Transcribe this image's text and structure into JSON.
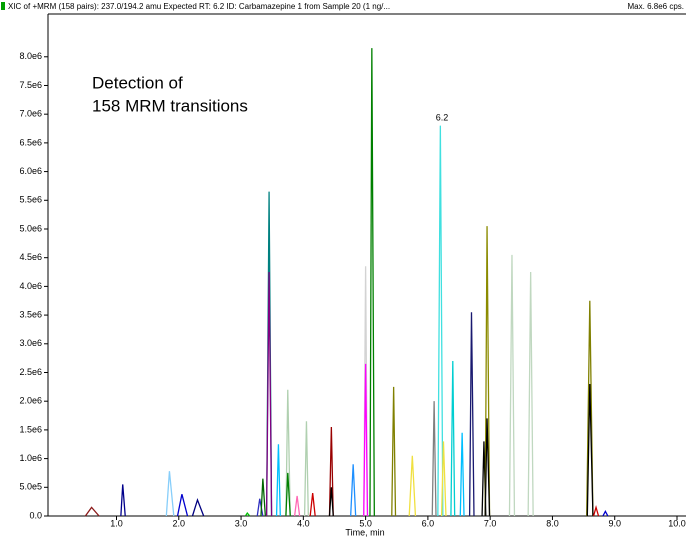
{
  "chart_data": {
    "type": "line",
    "title": "XIC of +MRM (158 pairs): 237.0/194.2 amu Expected RT: 6.2 ID: Carbamazepine 1 from Sample 20 (1 ng/...",
    "max_label": "Max. 6.8e6 cps.",
    "annotations": [
      "Detection of",
      "158 MRM transitions",
      "6.2"
    ],
    "x_label": "Time, min",
    "xlim": [
      -0.1,
      10.0
    ],
    "xticks": [
      {
        "value": 1,
        "label": "1.0"
      },
      {
        "value": 2,
        "label": "2.0"
      },
      {
        "value": 3,
        "label": "3.0"
      },
      {
        "value": 4,
        "label": "4.0"
      },
      {
        "value": 5,
        "label": "5.0"
      },
      {
        "value": 6,
        "label": "6.0"
      },
      {
        "value": 7,
        "label": "7.0"
      },
      {
        "value": 8,
        "label": "8.0"
      },
      {
        "value": 9,
        "label": "9.0"
      },
      {
        "value": 10,
        "label": "10.0"
      }
    ],
    "ylim": [
      0,
      8240000
    ],
    "yticks": [
      {
        "value": 0,
        "label": "0.0"
      },
      {
        "value": 500000,
        "label": "5.0e5"
      },
      {
        "value": 1000000,
        "label": "1.0e6"
      },
      {
        "value": 1500000,
        "label": "1.5e6"
      },
      {
        "value": 2000000,
        "label": "2.0e6"
      },
      {
        "value": 2500000,
        "label": "2.5e6"
      },
      {
        "value": 3000000,
        "label": "3.0e6"
      },
      {
        "value": 3500000,
        "label": "3.5e6"
      },
      {
        "value": 4000000,
        "label": "4.0e6"
      },
      {
        "value": 4500000,
        "label": "4.5e6"
      },
      {
        "value": 5000000,
        "label": "5.0e6"
      },
      {
        "value": 5500000,
        "label": "5.5e6"
      },
      {
        "value": 6000000,
        "label": "6.0e6"
      },
      {
        "value": 6500000,
        "label": "6.5e6"
      },
      {
        "value": 7000000,
        "label": "7.0e6"
      },
      {
        "value": 7500000,
        "label": "7.5e6"
      },
      {
        "value": 8000000,
        "label": "8.0e6"
      }
    ],
    "series": [
      {
        "color": "#8b1a1a",
        "x": [
          0.5,
          0.6,
          0.72
        ],
        "values": [
          0,
          150000,
          0
        ]
      },
      {
        "color": "#00008b",
        "x": [
          1.07,
          1.1,
          1.14
        ],
        "values": [
          0,
          550000,
          0
        ]
      },
      {
        "color": "#87cefa",
        "x": [
          1.8,
          1.85,
          1.92
        ],
        "values": [
          0,
          780000,
          0
        ]
      },
      {
        "color": "#0000cd",
        "x": [
          1.98,
          2.05,
          2.14
        ],
        "values": [
          0,
          380000,
          0
        ]
      },
      {
        "color": "#000080",
        "x": [
          2.22,
          2.3,
          2.4
        ],
        "values": [
          0,
          280000,
          0
        ]
      },
      {
        "color": "#00c000",
        "x": [
          3.07,
          3.1,
          3.14
        ],
        "values": [
          0,
          50000,
          0
        ]
      },
      {
        "color": "#3030c0",
        "x": [
          3.26,
          3.3,
          3.35
        ],
        "values": [
          0,
          300000,
          0
        ]
      },
      {
        "color": "#006400",
        "x": [
          3.32,
          3.35,
          3.39
        ],
        "values": [
          0,
          650000,
          0
        ]
      },
      {
        "color": "#008080",
        "x": [
          3.41,
          3.45,
          3.49
        ],
        "values": [
          0,
          5650000,
          0
        ]
      },
      {
        "color": "#800080",
        "x": [
          3.41,
          3.45,
          3.49
        ],
        "values": [
          0,
          4250000,
          0
        ]
      },
      {
        "color": "#00bfff",
        "x": [
          3.57,
          3.6,
          3.63
        ],
        "values": [
          0,
          1250000,
          0
        ]
      },
      {
        "color": "#b0d0b0",
        "x": [
          3.72,
          3.75,
          3.79
        ],
        "values": [
          0,
          2200000,
          0
        ]
      },
      {
        "color": "#008000",
        "x": [
          3.72,
          3.75,
          3.79
        ],
        "values": [
          0,
          750000,
          0
        ]
      },
      {
        "color": "#ff69b4",
        "x": [
          3.86,
          3.9,
          3.94
        ],
        "values": [
          0,
          350000,
          0
        ]
      },
      {
        "color": "#b0d0b0",
        "x": [
          4.02,
          4.05,
          4.08
        ],
        "values": [
          0,
          1650000,
          0
        ]
      },
      {
        "color": "#cc0000",
        "x": [
          4.11,
          4.15,
          4.19
        ],
        "values": [
          0,
          400000,
          0
        ]
      },
      {
        "color": "#990000",
        "x": [
          4.42,
          4.45,
          4.48
        ],
        "values": [
          0,
          1550000,
          0
        ]
      },
      {
        "color": "#000000",
        "x": [
          4.42,
          4.45,
          4.48
        ],
        "values": [
          0,
          500000,
          0
        ]
      },
      {
        "color": "#1e90ff",
        "x": [
          4.76,
          4.8,
          4.84
        ],
        "values": [
          0,
          900000,
          0
        ]
      },
      {
        "color": "#d3d3d3",
        "x": [
          4.97,
          5.0,
          5.03
        ],
        "values": [
          0,
          4350000,
          0
        ]
      },
      {
        "color": "#ff00ff",
        "x": [
          4.97,
          5.0,
          5.03
        ],
        "values": [
          0,
          2650000,
          0
        ]
      },
      {
        "color": "#008000",
        "x": [
          5.07,
          5.1,
          5.14
        ],
        "values": [
          0,
          8150000,
          0
        ]
      },
      {
        "color": "#808000",
        "x": [
          5.42,
          5.45,
          5.48
        ],
        "values": [
          0,
          2250000,
          0
        ]
      },
      {
        "color": "#f0e040",
        "x": [
          5.7,
          5.75,
          5.8
        ],
        "values": [
          0,
          1050000,
          0
        ]
      },
      {
        "color": "#808080",
        "x": [
          6.07,
          6.1,
          6.13
        ],
        "values": [
          0,
          2000000,
          0
        ]
      },
      {
        "color": "#40e0e0",
        "x": [
          6.16,
          6.2,
          6.24
        ],
        "values": [
          0,
          6800000,
          0
        ]
      },
      {
        "color": "#f0e040",
        "x": [
          6.22,
          6.25,
          6.29
        ],
        "values": [
          0,
          1300000,
          0
        ]
      },
      {
        "color": "#00ced1",
        "x": [
          6.37,
          6.4,
          6.43
        ],
        "values": [
          0,
          2700000,
          0
        ]
      },
      {
        "color": "#00bfff",
        "x": [
          6.52,
          6.55,
          6.58
        ],
        "values": [
          0,
          1450000,
          0
        ]
      },
      {
        "color": "#191970",
        "x": [
          6.67,
          6.7,
          6.74
        ],
        "values": [
          0,
          3550000,
          0
        ]
      },
      {
        "color": "#000000",
        "x": [
          6.87,
          6.9,
          6.93
        ],
        "values": [
          0,
          1300000,
          0
        ]
      },
      {
        "color": "#8b8b00",
        "x": [
          6.92,
          6.95,
          6.99
        ],
        "values": [
          0,
          5050000,
          0
        ]
      },
      {
        "color": "#000000",
        "x": [
          6.92,
          6.95,
          6.99
        ],
        "values": [
          0,
          1700000,
          0
        ]
      },
      {
        "color": "#c0d8c0",
        "x": [
          7.31,
          7.35,
          7.39
        ],
        "values": [
          0,
          4550000,
          0
        ]
      },
      {
        "color": "#c0d8c0",
        "x": [
          7.61,
          7.65,
          7.69
        ],
        "values": [
          0,
          4250000,
          0
        ]
      },
      {
        "color": "#808000",
        "x": [
          8.55,
          8.6,
          8.65
        ],
        "values": [
          0,
          3750000,
          0
        ]
      },
      {
        "color": "#000000",
        "x": [
          8.56,
          8.6,
          8.65
        ],
        "values": [
          0,
          2300000,
          0
        ]
      },
      {
        "color": "#cc0000",
        "x": [
          8.66,
          8.7,
          8.74
        ],
        "values": [
          0,
          150000,
          0
        ]
      },
      {
        "color": "#0000cd",
        "x": [
          8.81,
          8.85,
          8.89
        ],
        "values": [
          0,
          80000,
          0
        ]
      }
    ]
  }
}
